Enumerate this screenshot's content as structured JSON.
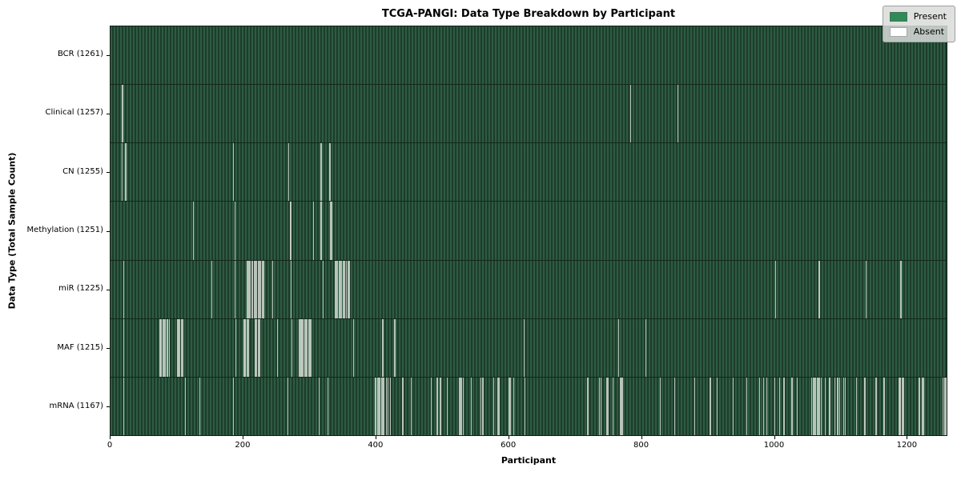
{
  "title": "TCGA-PANGI: Data Type Breakdown by Participant",
  "xlabel": "Participant",
  "ylabel": "Data Type (Total Sample Count)",
  "legend": {
    "present_label": "Present",
    "absent_label": "Absent",
    "present_color": "#2e8b57",
    "absent_color": "#ffffff"
  },
  "colors": {
    "cell_light": "#2d5c42",
    "cell_dark": "#1e3c2b",
    "absent_line": "rgba(198,206,198,0.92)",
    "spine": "#1a1a1a"
  },
  "chart_data": {
    "type": "heatmap",
    "title": "TCGA-PANGI: Data Type Breakdown by Participant",
    "xlabel": "Participant",
    "ylabel": "Data Type (Total Sample Count)",
    "n_participants": 1261,
    "x_ticks": [
      0,
      200,
      400,
      600,
      800,
      1000,
      1200
    ],
    "grid": false,
    "legend_position": "upper right",
    "legend": [
      {
        "label": "Present",
        "color": "#2e8b57"
      },
      {
        "label": "Absent",
        "color": "#ffffff"
      }
    ],
    "rows": [
      {
        "label": "BCR (1261)",
        "data_type": "BCR",
        "total_samples": 1261,
        "absent_participants": []
      },
      {
        "label": "Clinical (1257)",
        "data_type": "Clinical",
        "total_samples": 1257,
        "absent_participants": [
          17,
          18,
          784,
          855
        ]
      },
      {
        "label": "CN (1255)",
        "data_type": "CN",
        "total_samples": 1255,
        "absent_participants": [
          17,
          22,
          185,
          268,
          317,
          330
        ]
      },
      {
        "label": "Methylation (1251)",
        "data_type": "Methylation",
        "total_samples": 1251,
        "absent_participants": [
          124,
          187,
          270,
          271,
          305,
          316,
          317,
          331,
          332,
          333
        ]
      },
      {
        "label": "miR (1225)",
        "data_type": "miR",
        "total_samples": 1225,
        "absent_participants": [
          19,
          152,
          187,
          205,
          206,
          208,
          210,
          212,
          214,
          216,
          218,
          220,
          222,
          224,
          226,
          228,
          230,
          244,
          272,
          320,
          338,
          340,
          342,
          344,
          346,
          348,
          350,
          352,
          355,
          358,
          360,
          1002,
          1068,
          1139,
          1191,
          1192
        ]
      },
      {
        "label": "MAF (1215)",
        "data_type": "MAF",
        "total_samples": 1215,
        "absent_participants": [
          19,
          74,
          75,
          76,
          78,
          80,
          82,
          84,
          86,
          88,
          100,
          101,
          102,
          104,
          106,
          108,
          188,
          201,
          202,
          203,
          205,
          207,
          218,
          220,
          222,
          224,
          251,
          273,
          284,
          285,
          286,
          287,
          288,
          290,
          292,
          294,
          296,
          298,
          300,
          302,
          366,
          410,
          428,
          623,
          766,
          807
        ]
      },
      {
        "label": "mRNA (1167)",
        "data_type": "mRNA",
        "total_samples": 1167,
        "absent_participants": [
          19,
          112,
          134,
          185,
          267,
          314,
          327,
          398,
          400,
          402,
          404,
          406,
          408,
          410,
          412,
          415,
          418,
          421,
          440,
          453,
          483,
          492,
          497,
          507,
          525,
          527,
          529,
          531,
          543,
          558,
          561,
          577,
          583,
          585,
          600,
          602,
          607,
          624,
          719,
          737,
          739,
          748,
          750,
          757,
          768,
          770,
          772,
          828,
          850,
          880,
          904,
          914,
          938,
          959,
          978,
          984,
          989,
          1001,
          1008,
          1015,
          1027,
          1035,
          1057,
          1059,
          1061,
          1063,
          1065,
          1067,
          1069,
          1071,
          1077,
          1084,
          1092,
          1096,
          1099,
          1105,
          1107,
          1124,
          1136,
          1137,
          1154,
          1165,
          1166,
          1189,
          1190,
          1191,
          1193,
          1195,
          1219,
          1224,
          1226,
          1255,
          1257,
          1259
        ]
      }
    ]
  }
}
